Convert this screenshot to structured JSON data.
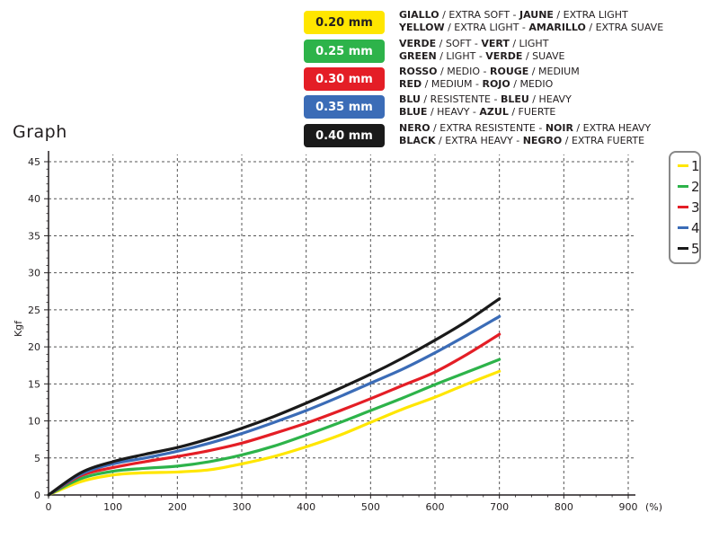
{
  "key": [
    {
      "swatch_label": "0.20 mm",
      "color": "#ffe600",
      "text_color": "#231f20",
      "line1": [
        [
          "GIALLO",
          true
        ],
        [
          " / EXTRA SOFT - ",
          false
        ],
        [
          "JAUNE",
          true
        ],
        [
          " / EXTRA LIGHT",
          false
        ]
      ],
      "line2": [
        [
          "YELLOW",
          true
        ],
        [
          " / EXTRA LIGHT - ",
          false
        ],
        [
          "AMARILLO",
          true
        ],
        [
          " / EXTRA SUAVE",
          false
        ]
      ]
    },
    {
      "swatch_label": "0.25 mm",
      "color": "#2db34a",
      "text_color": "#ffffff",
      "line1": [
        [
          "VERDE",
          true
        ],
        [
          " / SOFT - ",
          false
        ],
        [
          "VERT",
          true
        ],
        [
          " / LIGHT",
          false
        ]
      ],
      "line2": [
        [
          "GREEN",
          true
        ],
        [
          " / LIGHT - ",
          false
        ],
        [
          "VERDE",
          true
        ],
        [
          " / SUAVE",
          false
        ]
      ]
    },
    {
      "swatch_label": "0.30 mm",
      "color": "#e41e26",
      "text_color": "#ffffff",
      "line1": [
        [
          "ROSSO",
          true
        ],
        [
          " / MEDIO - ",
          false
        ],
        [
          "ROUGE",
          true
        ],
        [
          " / MEDIUM",
          false
        ]
      ],
      "line2": [
        [
          "RED",
          true
        ],
        [
          " / MEDIUM - ",
          false
        ],
        [
          "ROJO",
          true
        ],
        [
          " / MEDIO",
          false
        ]
      ]
    },
    {
      "swatch_label": "0.35 mm",
      "color": "#3b6cb7",
      "text_color": "#ffffff",
      "line1": [
        [
          "BLU",
          true
        ],
        [
          " / RESISTENTE - ",
          false
        ],
        [
          "BLEU",
          true
        ],
        [
          " / HEAVY",
          false
        ]
      ],
      "line2": [
        [
          "BLUE",
          true
        ],
        [
          " / HEAVY - ",
          false
        ],
        [
          "AZUL",
          true
        ],
        [
          " / FUERTE",
          false
        ]
      ]
    },
    {
      "swatch_label": "0.40 mm",
      "color": "#1a1a1a",
      "text_color": "#ffffff",
      "line1": [
        [
          "NERO",
          true
        ],
        [
          " / EXTRA RESISTENTE - ",
          false
        ],
        [
          "NOIR",
          true
        ],
        [
          " / EXTRA HEAVY",
          false
        ]
      ],
      "line2": [
        [
          "BLACK",
          true
        ],
        [
          " / EXTRA HEAVY - ",
          false
        ],
        [
          "NEGRO",
          true
        ],
        [
          " / EXTRA FUERTE",
          false
        ]
      ]
    }
  ],
  "chart_data": {
    "type": "line",
    "title": "Graph",
    "xlabel": "(%)",
    "ylabel": "Kgf",
    "xlim": [
      0,
      900
    ],
    "ylim": [
      0,
      45
    ],
    "xticks": [
      0,
      100,
      200,
      300,
      400,
      500,
      600,
      700,
      800,
      900
    ],
    "yticks": [
      0,
      5,
      10,
      15,
      20,
      25,
      30,
      35,
      40,
      45
    ],
    "grid": true,
    "legend_position": "right",
    "series": [
      {
        "name": "1",
        "color": "#ffe600",
        "x": [
          0,
          50,
          100,
          150,
          200,
          250,
          300,
          350,
          400,
          450,
          500,
          550,
          600,
          650,
          700
        ],
        "y": [
          0,
          1.8,
          2.7,
          3.0,
          3.1,
          3.4,
          4.2,
          5.2,
          6.5,
          8.0,
          9.8,
          11.6,
          13.2,
          15.0,
          16.7
        ]
      },
      {
        "name": "2",
        "color": "#2db34a",
        "x": [
          0,
          50,
          100,
          150,
          200,
          250,
          300,
          350,
          400,
          450,
          500,
          550,
          600,
          650,
          700
        ],
        "y": [
          0,
          2.2,
          3.2,
          3.6,
          3.9,
          4.5,
          5.4,
          6.6,
          8.1,
          9.7,
          11.4,
          13.1,
          14.9,
          16.6,
          18.3
        ]
      },
      {
        "name": "3",
        "color": "#e41e26",
        "x": [
          0,
          50,
          100,
          150,
          200,
          250,
          300,
          350,
          400,
          450,
          500,
          550,
          600,
          650,
          700
        ],
        "y": [
          0,
          2.6,
          3.7,
          4.5,
          5.2,
          6.0,
          7.0,
          8.3,
          9.7,
          11.3,
          13.0,
          14.8,
          16.6,
          19.0,
          21.7
        ]
      },
      {
        "name": "4",
        "color": "#3b6cb7",
        "x": [
          0,
          50,
          100,
          150,
          200,
          250,
          300,
          350,
          400,
          450,
          500,
          550,
          600,
          650,
          700
        ],
        "y": [
          0,
          2.8,
          4.2,
          5.0,
          5.9,
          7.0,
          8.3,
          9.8,
          11.4,
          13.2,
          15.1,
          17.0,
          19.2,
          21.6,
          24.1
        ]
      },
      {
        "name": "5",
        "color": "#1a1a1a",
        "x": [
          0,
          50,
          100,
          150,
          200,
          250,
          300,
          350,
          400,
          450,
          500,
          550,
          600,
          650,
          700
        ],
        "y": [
          0,
          3.0,
          4.5,
          5.5,
          6.4,
          7.6,
          9.0,
          10.6,
          12.4,
          14.3,
          16.3,
          18.5,
          20.9,
          23.5,
          26.5
        ]
      }
    ]
  }
}
